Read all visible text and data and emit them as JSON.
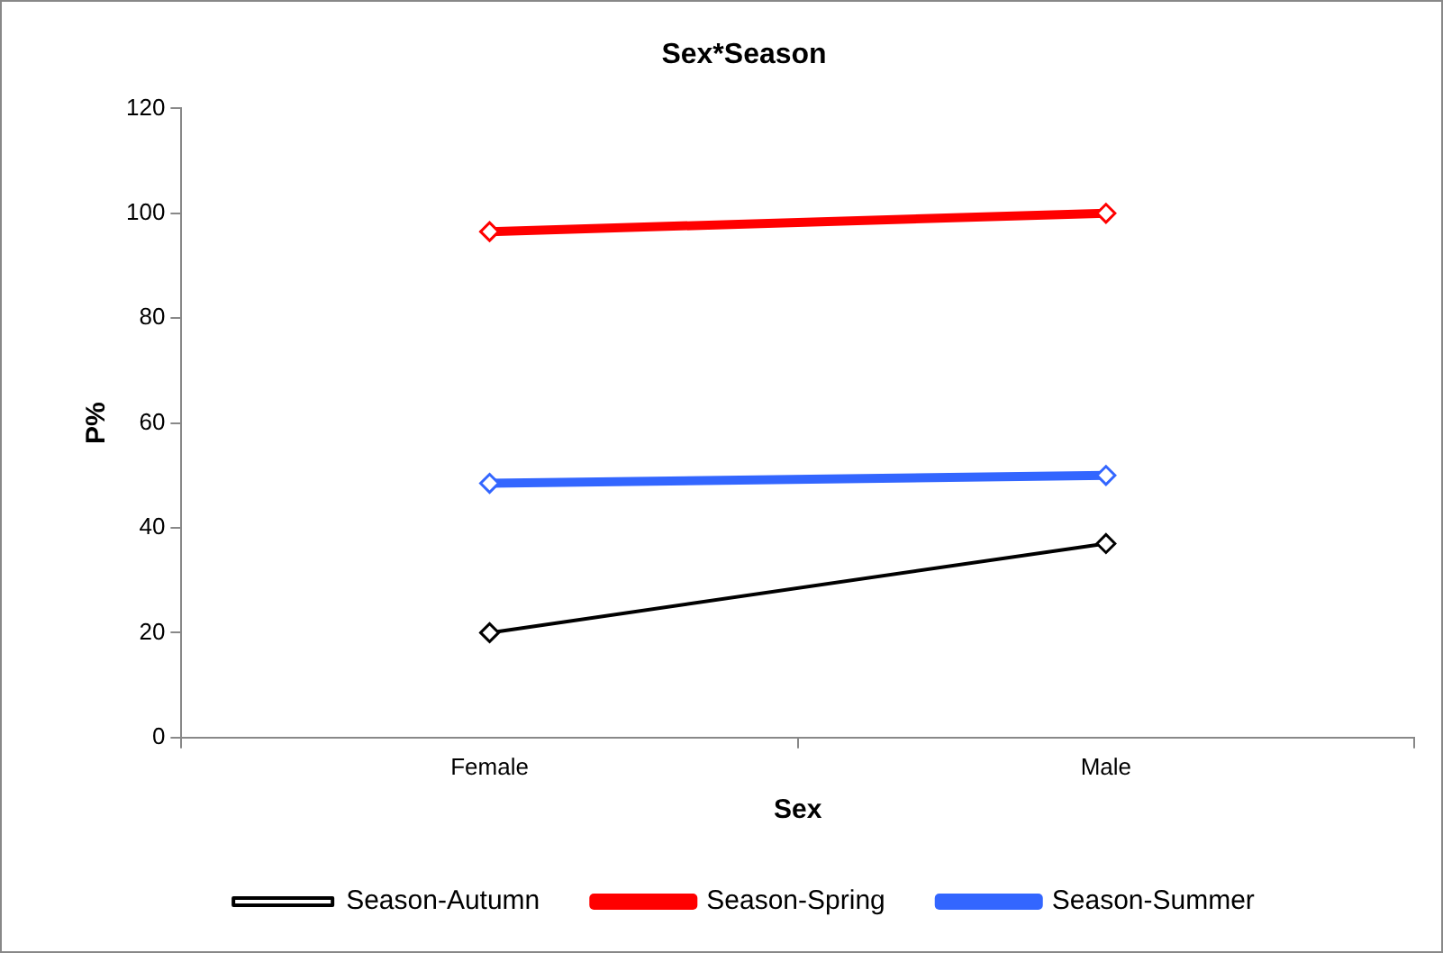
{
  "chart_data": {
    "type": "line",
    "title": "Sex*Season",
    "xlabel": "Sex",
    "ylabel": "P%",
    "categories": [
      "Female",
      "Male"
    ],
    "series": [
      {
        "name": "Season-Autumn",
        "color": "#000000",
        "values": [
          20,
          37
        ]
      },
      {
        "name": "Season-Spring",
        "color": "#ff0000",
        "values": [
          96.5,
          100
        ]
      },
      {
        "name": "Season-Summer",
        "color": "#3366ff",
        "values": [
          48.5,
          50
        ]
      }
    ],
    "ylim": [
      0,
      120
    ],
    "yticks": [
      0,
      20,
      40,
      60,
      80,
      100,
      120
    ],
    "grid": false,
    "legend": "bottom",
    "marker": "diamond",
    "line_style": "solid"
  }
}
